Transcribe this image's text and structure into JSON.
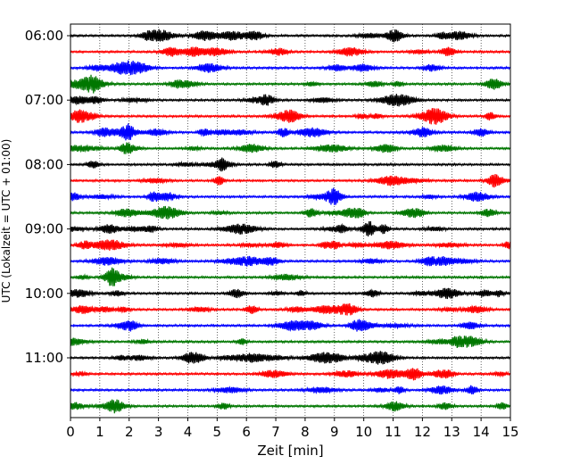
{
  "chart_data": {
    "type": "line",
    "title": "",
    "xlabel": "Zeit  [min]",
    "ylabel": "UTC (Lokalzeit = UTC + 01:00)",
    "xlim": [
      0,
      15
    ],
    "x_ticks": [
      "0",
      "1",
      "2",
      "3",
      "4",
      "5",
      "6",
      "7",
      "8",
      "9",
      "10",
      "11",
      "12",
      "13",
      "14",
      "15"
    ],
    "y_ticks": [
      "06:00",
      "07:00",
      "08:00",
      "09:00",
      "10:00",
      "11:00"
    ],
    "grid": "vertical dotted at each minute",
    "trace_interval_min": 15,
    "first_trace_utc": "06:00",
    "trace_count": 24,
    "trace_colors": [
      "#000000",
      "#ff0000",
      "#0000ff",
      "#007700"
    ],
    "legend": "none"
  }
}
